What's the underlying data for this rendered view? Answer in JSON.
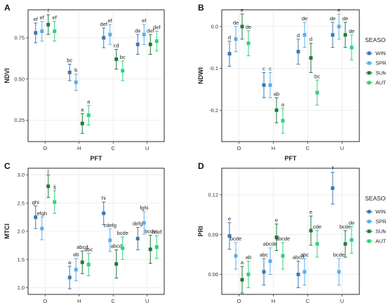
{
  "legend": {
    "title": "SEASON",
    "entries": [
      {
        "name": "WINTER",
        "color": "#3b78b0"
      },
      {
        "name": "SPRING",
        "color": "#5aaee8"
      },
      {
        "name": "SUMMER",
        "color": "#1e7a3e"
      },
      {
        "name": "AUTUMN",
        "color": "#2fd17a"
      }
    ]
  },
  "chart_data": [
    {
      "type": "scatter",
      "panel": "A",
      "xlabel": "PFT",
      "ylabel": "NDVI",
      "categories": [
        "O",
        "H",
        "C",
        "U"
      ],
      "ylim": [
        0.12,
        0.92
      ],
      "yticks": [
        0.25,
        0.5,
        0.75
      ],
      "ytick_labels": [
        "0.25",
        "0.50",
        "0.75"
      ],
      "series": [
        {
          "name": "WINTER",
          "values": [
            0.78,
            0.54,
            0.75,
            0.71
          ],
          "err": [
            0.06,
            0.05,
            0.06,
            0.06
          ],
          "labels": [
            "ef",
            "bc",
            "def",
            "de"
          ]
        },
        {
          "name": "SPRING",
          "values": [
            0.79,
            0.48,
            0.77,
            0.77
          ],
          "err": [
            0.06,
            0.05,
            0.06,
            0.06
          ],
          "labels": [
            "ef",
            "b",
            "ef",
            "ef"
          ]
        },
        {
          "name": "SUMMER",
          "values": [
            0.83,
            0.23,
            0.62,
            0.71
          ],
          "err": [
            0.06,
            0.06,
            0.06,
            0.06
          ],
          "labels": [
            "f",
            "a",
            "cd",
            "def"
          ]
        },
        {
          "name": "AUTUMN",
          "values": [
            0.79,
            0.28,
            0.55,
            0.73
          ],
          "err": [
            0.06,
            0.06,
            0.06,
            0.06
          ],
          "labels": [
            "ef",
            "a",
            "bc",
            "def"
          ]
        }
      ]
    },
    {
      "type": "scatter",
      "panel": "B",
      "xlabel": "PFT",
      "ylabel": "NDWI",
      "categories": [
        "O",
        "H",
        "C",
        "U"
      ],
      "ylim": [
        -0.275,
        0.04
      ],
      "yticks": [
        -0.2,
        -0.1,
        0.0
      ],
      "ytick_labels": [
        "-0.2",
        "-0.1",
        "0.0"
      ],
      "series": [
        {
          "name": "WINTER",
          "values": [
            -0.065,
            -0.14,
            -0.06,
            -0.02
          ],
          "err": [
            0.03,
            0.03,
            0.03,
            0.03
          ],
          "labels": [
            "d",
            "c",
            "d",
            "de"
          ]
        },
        {
          "name": "SPRING",
          "values": [
            -0.03,
            -0.14,
            -0.02,
            0.0
          ],
          "err": [
            0.03,
            0.03,
            0.03,
            0.03
          ],
          "labels": [
            "de",
            "c",
            "de",
            "e"
          ]
        },
        {
          "name": "SUMMER",
          "values": [
            0.0,
            -0.2,
            -0.075,
            -0.02
          ],
          "err": [
            0.03,
            0.03,
            0.035,
            0.03
          ],
          "labels": [
            "e",
            "ab",
            "d",
            "de"
          ]
        },
        {
          "name": "AUTUMN",
          "values": [
            -0.04,
            -0.225,
            -0.158,
            -0.05
          ],
          "err": [
            0.03,
            0.03,
            0.03,
            0.03
          ],
          "labels": [
            "de",
            "a",
            "bc",
            "de"
          ]
        }
      ]
    },
    {
      "type": "scatter",
      "panel": "C",
      "xlabel": "PFT",
      "ylabel": "MTCI",
      "categories": [
        "O",
        "H",
        "C",
        "U"
      ],
      "ylim": [
        0.88,
        3.12
      ],
      "yticks": [
        1.0,
        1.5,
        2.0,
        2.5,
        3.0
      ],
      "ytick_labels": [
        "1.0",
        "1.5",
        "2.0",
        "2.5",
        "3.0"
      ],
      "series": [
        {
          "name": "WINTER",
          "values": [
            2.25,
            1.18,
            2.32,
            1.87
          ],
          "err": [
            0.2,
            0.2,
            0.2,
            0.2
          ],
          "labels": [
            "ghi",
            "a",
            "hi",
            "defg"
          ]
        },
        {
          "name": "SPRING",
          "values": [
            2.05,
            1.32,
            1.84,
            2.15
          ],
          "err": [
            0.2,
            0.2,
            0.2,
            0.2
          ],
          "labels": [
            "efgh",
            "ab",
            "cdefg",
            "fghi"
          ]
        },
        {
          "name": "SUMMER",
          "values": [
            2.8,
            1.45,
            1.42,
            1.68
          ],
          "err": [
            0.2,
            0.2,
            0.25,
            0.25
          ],
          "labels": [
            "j",
            "abcd",
            "abcd",
            "bcde"
          ]
        },
        {
          "name": "AUTUMN",
          "values": [
            2.52,
            1.41,
            1.7,
            1.72
          ],
          "err": [
            0.2,
            0.2,
            0.2,
            0.2
          ],
          "labels": [
            "ij",
            "abc",
            "bcde",
            "cdef"
          ]
        }
      ]
    },
    {
      "type": "scatter",
      "panel": "D",
      "xlabel": "PFT",
      "ylabel": "PRI",
      "categories": [
        "O",
        "H",
        "C",
        "U"
      ],
      "ylim": [
        0.045,
        0.14
      ],
      "yticks": [
        0.06,
        0.09,
        0.12
      ],
      "ytick_labels": [
        "0.06",
        "0.09",
        "0.12"
      ],
      "series": [
        {
          "name": "WINTER",
          "values": [
            0.089,
            0.062,
            0.06,
            0.125
          ],
          "err": [
            0.01,
            0.01,
            0.01,
            0.012
          ],
          "labels": [
            "e",
            "abc",
            "abcd",
            "f"
          ]
        },
        {
          "name": "SPRING",
          "values": [
            0.074,
            0.07,
            0.062,
            0.062
          ],
          "err": [
            0.01,
            0.01,
            0.01,
            0.01
          ],
          "labels": [
            "bcde",
            "abcde",
            "abc",
            "bcde"
          ]
        },
        {
          "name": "SUMMER",
          "values": [
            0.056,
            0.088,
            0.093,
            0.083
          ],
          "err": [
            0.01,
            0.01,
            0.011,
            0.01
          ],
          "labels": [
            "a",
            "e",
            "e",
            "bcde"
          ]
        },
        {
          "name": "AUTUMN",
          "values": [
            0.06,
            0.074,
            0.083,
            0.086
          ],
          "err": [
            0.01,
            0.01,
            0.01,
            0.01
          ],
          "labels": [
            "ab",
            "abcde",
            "cde",
            "de"
          ]
        }
      ]
    }
  ]
}
